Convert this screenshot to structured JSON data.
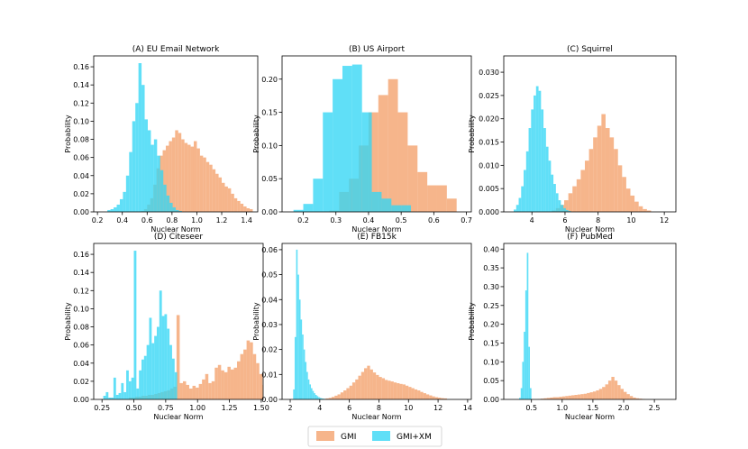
{
  "colors": {
    "gmi": "#f4a06a",
    "gmi_xm": "#33d6f5",
    "axis": "#000000"
  },
  "legend": {
    "items": [
      {
        "key": "gmi",
        "label": "GMI"
      },
      {
        "key": "gmi_xm",
        "label": "GMI+XM"
      }
    ],
    "placement": "bottom-center"
  },
  "chart_data": [
    {
      "type": "bar",
      "title": "(A) EU Email Network",
      "xlabel": "Nuclear  Norm",
      "ylabel": "Probability",
      "xlim": [
        0.17,
        1.49
      ],
      "ylim": [
        0,
        0.172
      ],
      "xticks": [
        0.2,
        0.4,
        0.6,
        0.8,
        1.0,
        1.2,
        1.4
      ],
      "xtick_labels": [
        "0.2",
        "0.4",
        "0.6",
        "0.8",
        "1.0",
        "1.2",
        "1.4"
      ],
      "yticks": [
        0,
        0.02,
        0.04,
        0.06,
        0.08,
        0.1,
        0.12,
        0.14,
        0.16
      ],
      "ytick_labels": [
        "0.00",
        "0.02",
        "0.04",
        "0.06",
        "0.08",
        "0.10",
        "0.12",
        "0.14",
        "0.16"
      ],
      "series": [
        {
          "name": "GMI",
          "bin_start": 0.55,
          "bin_width": 0.025,
          "values": [
            0.001,
            0.003,
            0.008,
            0.015,
            0.03,
            0.048,
            0.062,
            0.068,
            0.073,
            0.078,
            0.082,
            0.09,
            0.087,
            0.08,
            0.076,
            0.074,
            0.072,
            0.078,
            0.07,
            0.062,
            0.06,
            0.055,
            0.052,
            0.047,
            0.042,
            0.038,
            0.032,
            0.028,
            0.026,
            0.02,
            0.015,
            0.012,
            0.009,
            0.006,
            0.004,
            0.003
          ]
        },
        {
          "name": "GMI+XM",
          "bin_start": 0.28,
          "bin_width": 0.025,
          "values": [
            0.002,
            0.003,
            0.005,
            0.008,
            0.014,
            0.022,
            0.04,
            0.066,
            0.1,
            0.12,
            0.164,
            0.14,
            0.102,
            0.09,
            0.074,
            0.08,
            0.062,
            0.046,
            0.03,
            0.018,
            0.01,
            0.005,
            0.002,
            0.001
          ]
        }
      ]
    },
    {
      "type": "bar",
      "title": "(B) US Airport",
      "xlabel": "Nuclear  Norm",
      "ylabel": "Probability",
      "xlim": [
        0.135,
        0.715
      ],
      "ylim": [
        0,
        0.235
      ],
      "xticks": [
        0.2,
        0.3,
        0.4,
        0.5,
        0.6,
        0.7
      ],
      "xtick_labels": [
        "0.2",
        "0.3",
        "0.4",
        "0.5",
        "0.6",
        "0.7"
      ],
      "yticks": [
        0,
        0.05,
        0.1,
        0.15,
        0.2
      ],
      "ytick_labels": [
        "0.00",
        "0.05",
        "0.10",
        "0.15",
        "0.20"
      ],
      "series": [
        {
          "name": "GMI",
          "bin_start": 0.28,
          "bin_width": 0.03,
          "values": [
            0.002,
            0.03,
            0.05,
            0.1,
            0.15,
            0.176,
            0.2,
            0.15,
            0.1,
            0.06,
            0.04,
            0.04,
            0.02,
            0
          ]
        },
        {
          "name": "GMI+XM",
          "bin_start": 0.17,
          "bin_width": 0.03,
          "values": [
            0.003,
            0.012,
            0.05,
            0.15,
            0.2,
            0.22,
            0.222,
            0.15,
            0.03,
            0.02,
            0.01,
            0.01
          ]
        }
      ]
    },
    {
      "type": "bar",
      "title": "(C) Squirrel",
      "xlabel": "Nuclear  Norm",
      "ylabel": "Probability",
      "xlim": [
        2.3,
        12.7
      ],
      "ylim": [
        0,
        0.0335
      ],
      "xticks": [
        4,
        6,
        8,
        10,
        12
      ],
      "xtick_labels": [
        "4",
        "6",
        "8",
        "10",
        "12"
      ],
      "yticks": [
        0,
        0.005,
        0.01,
        0.015,
        0.02,
        0.025,
        0.03
      ],
      "ytick_labels": [
        "0.000",
        "0.005",
        "0.010",
        "0.015",
        "0.020",
        "0.025",
        "0.030"
      ],
      "series": [
        {
          "name": "GMI",
          "bin_start": 5.2,
          "bin_width": 0.25,
          "values": [
            0.0003,
            0.0008,
            0.0015,
            0.0025,
            0.004,
            0.0055,
            0.007,
            0.009,
            0.011,
            0.0135,
            0.016,
            0.0185,
            0.021,
            0.018,
            0.016,
            0.0135,
            0.01,
            0.0075,
            0.005,
            0.0035,
            0.0022,
            0.0012,
            0.0006,
            0.0003
          ]
        },
        {
          "name": "GMI+XM",
          "bin_start": 2.9,
          "bin_width": 0.15,
          "values": [
            0.0005,
            0.0015,
            0.003,
            0.0055,
            0.009,
            0.013,
            0.018,
            0.022,
            0.025,
            0.027,
            0.026,
            0.022,
            0.018,
            0.014,
            0.011,
            0.008,
            0.006,
            0.004,
            0.0025,
            0.0015,
            0.0008,
            0.0004,
            0.0002
          ]
        }
      ]
    },
    {
      "type": "bar",
      "title": "(D) Citeseer",
      "xlabel": "Nuclear  Norm",
      "ylabel": "Probability",
      "xlim": [
        0.185,
        1.515
      ],
      "ylim": [
        0,
        0.172
      ],
      "xticks": [
        0.25,
        0.5,
        0.75,
        1.0,
        1.25,
        1.5
      ],
      "xtick_labels": [
        "0.25",
        "0.50",
        "0.75",
        "1.00",
        "1.25",
        "1.50"
      ],
      "yticks": [
        0,
        0.02,
        0.04,
        0.06,
        0.08,
        0.1,
        0.12,
        0.14,
        0.16
      ],
      "ytick_labels": [
        "0.00",
        "0.02",
        "0.04",
        "0.06",
        "0.08",
        "0.10",
        "0.12",
        "0.14",
        "0.16"
      ],
      "series": [
        {
          "name": "GMI",
          "bin_start": 0.46,
          "bin_width": 0.025,
          "values": [
            0.002,
            0.002,
            0.003,
            0.003,
            0.004,
            0.004,
            0.005,
            0.005,
            0.006,
            0.007,
            0.008,
            0.009,
            0.01,
            0.012,
            0.014,
            0.093,
            0.018,
            0.02,
            0.016,
            0.012,
            0.015,
            0.013,
            0.017,
            0.022,
            0.028,
            0.018,
            0.02,
            0.035,
            0.038,
            0.032,
            0.03,
            0.036,
            0.033,
            0.035,
            0.042,
            0.05,
            0.055,
            0.065,
            0.063,
            0.05,
            0.04,
            0.028,
            0.016
          ]
        },
        {
          "name": "GMI+XM",
          "bin_start": 0.26,
          "bin_width": 0.02,
          "values": [
            0.004,
            0.008,
            0.002,
            0.002,
            0.024,
            0.005,
            0.007,
            0.018,
            0.008,
            0.032,
            0.02,
            0.024,
            0.164,
            0.012,
            0.032,
            0.044,
            0.048,
            0.06,
            0.09,
            0.062,
            0.07,
            0.08,
            0.12,
            0.092,
            0.094,
            0.078,
            0.06,
            0.045,
            0.03
          ]
        }
      ]
    },
    {
      "type": "bar",
      "title": "(E) FB15k",
      "xlabel": "Nuclear  Norm",
      "ylabel": "Probability",
      "xlim": [
        1.45,
        14.25
      ],
      "ylim": [
        0,
        0.0625
      ],
      "xticks": [
        2,
        4,
        6,
        8,
        10,
        12,
        14
      ],
      "xtick_labels": [
        "2",
        "4",
        "6",
        "8",
        "10",
        "12",
        "14"
      ],
      "yticks": [
        0,
        0.01,
        0.02,
        0.03,
        0.04,
        0.05,
        0.06
      ],
      "ytick_labels": [
        "0.00",
        "0.01",
        "0.02",
        "0.03",
        "0.04",
        "0.05",
        "0.06"
      ],
      "series": [
        {
          "name": "GMI",
          "bin_start": 4.2,
          "bin_width": 0.2,
          "values": [
            0.0002,
            0.0004,
            0.0006,
            0.001,
            0.0015,
            0.002,
            0.0028,
            0.0036,
            0.0045,
            0.0055,
            0.0068,
            0.008,
            0.0095,
            0.011,
            0.0125,
            0.0135,
            0.012,
            0.0108,
            0.0098,
            0.009,
            0.0085,
            0.0078,
            0.0075,
            0.0072,
            0.0068,
            0.0065,
            0.0062,
            0.006,
            0.0055,
            0.005,
            0.0045,
            0.004,
            0.0036,
            0.003,
            0.0025,
            0.002,
            0.0016,
            0.0012,
            0.0009,
            0.0007,
            0.0005,
            0.0004
          ]
        },
        {
          "name": "GMI+XM",
          "bin_start": 2.2,
          "bin_width": 0.1,
          "values": [
            0.004,
            0.025,
            0.06,
            0.05,
            0.04,
            0.032,
            0.026,
            0.02,
            0.015,
            0.011,
            0.008,
            0.006,
            0.0045,
            0.0034,
            0.0025,
            0.0018,
            0.0013,
            0.0009,
            0.0006,
            0.0004,
            0.0003,
            0.0002
          ]
        }
      ]
    },
    {
      "type": "bar",
      "title": "(F) PubMed",
      "xlabel": "Nuclear  Norm",
      "ylabel": "Probability",
      "xlim": [
        0.05,
        2.85
      ],
      "ylim": [
        0,
        0.415
      ],
      "xticks": [
        0.5,
        1.0,
        1.5,
        2.0,
        2.5
      ],
      "xtick_labels": [
        "0.5",
        "1.0",
        "1.5",
        "2.0",
        "2.5"
      ],
      "yticks": [
        0,
        0.05,
        0.1,
        0.15,
        0.2,
        0.25,
        0.3,
        0.35,
        0.4
      ],
      "ytick_labels": [
        "0.00",
        "0.05",
        "0.10",
        "0.15",
        "0.20",
        "0.25",
        "0.30",
        "0.35",
        "0.40"
      ],
      "series": [
        {
          "name": "GMI",
          "bin_start": 0.6,
          "bin_width": 0.05,
          "values": [
            0.001,
            0.002,
            0.003,
            0.004,
            0.005,
            0.006,
            0.006,
            0.007,
            0.008,
            0.009,
            0.01,
            0.011,
            0.012,
            0.013,
            0.014,
            0.015,
            0.017,
            0.019,
            0.021,
            0.024,
            0.028,
            0.033,
            0.04,
            0.05,
            0.06,
            0.05,
            0.038,
            0.028,
            0.02,
            0.014,
            0.009,
            0.005,
            0.003,
            0.002,
            0.001
          ]
        },
        {
          "name": "GMI+XM",
          "bin_start": 0.3,
          "bin_width": 0.025,
          "values": [
            0.004,
            0.03,
            0.1,
            0.18,
            0.29,
            0.39,
            0.14,
            0.03
          ]
        }
      ]
    }
  ]
}
